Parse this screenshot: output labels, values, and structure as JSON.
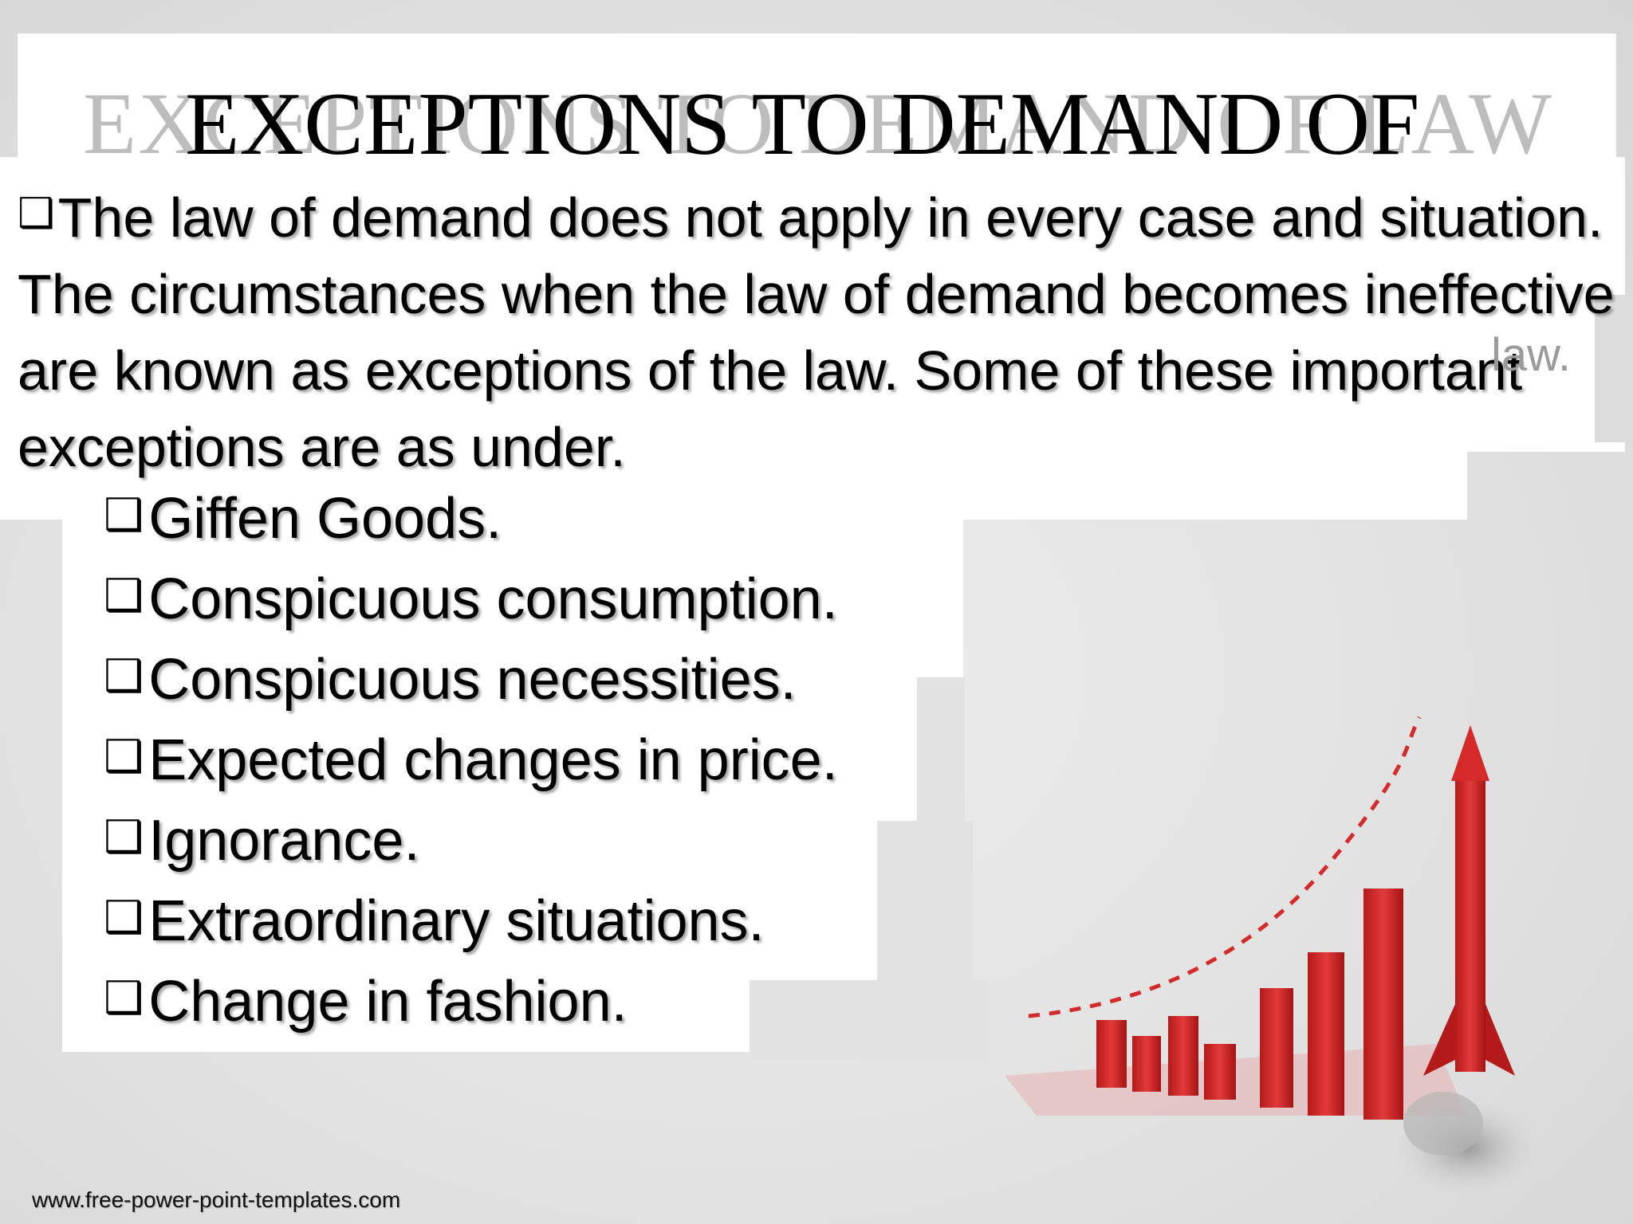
{
  "title": "EXCEPTIONS TO DEMAND OF",
  "title_ghost": "EXCEPTIONS TO DEMAND OF LAW",
  "bullet_glyph": "❑",
  "intro": "The law of demand does not apply in every case and situation. The circumstances when the law of demand becomes ineffective are known as exceptions of the law.  Some of these important exceptions are as under.",
  "ghost_law": "law.",
  "exceptions": [
    "Giffen Goods.",
    "Conspicuous consumption.",
    "Conspicuous necessities.",
    "Expected changes in price.",
    "Ignorance.",
    "Extraordinary situations.",
    "Change in fashion."
  ],
  "footer": "www.free-power-point-templates.com",
  "colors": {
    "accent": "#d42a2a",
    "background": "#dcdcdc"
  },
  "graphic_icon": "rocket-bar-chart-icon"
}
